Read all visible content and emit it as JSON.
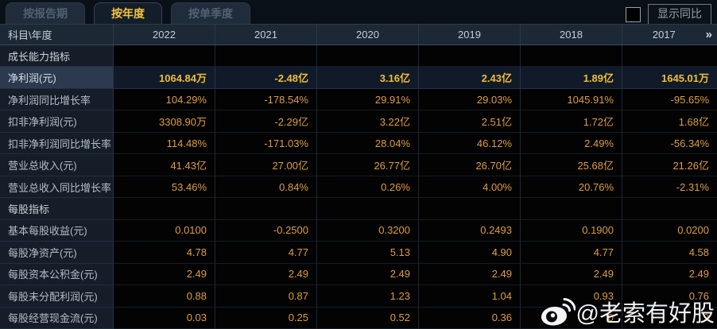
{
  "tabs": [
    {
      "label": "按报告期",
      "active": false
    },
    {
      "label": "按年度",
      "active": true
    },
    {
      "label": "按单季度",
      "active": false
    }
  ],
  "controls": {
    "show_yoy_label": "显示同比",
    "checkbox_checked": false
  },
  "table": {
    "corner_label": "科目\\年度",
    "years": [
      "2022",
      "2021",
      "2020",
      "2019",
      "2018",
      "2017"
    ],
    "more_years_icon": "»",
    "rows": [
      {
        "type": "section",
        "label": "成长能力指标",
        "values": [
          "",
          "",
          "",
          "",
          "",
          ""
        ]
      },
      {
        "type": "data",
        "highlight": true,
        "label": "净利润(元)",
        "values": [
          "1064.84万",
          "-2.48亿",
          "3.16亿",
          "2.43亿",
          "1.89亿",
          "1645.01万"
        ]
      },
      {
        "type": "data",
        "highlight": false,
        "label": "净利润同比增长率",
        "values": [
          "104.29%",
          "-178.54%",
          "29.91%",
          "29.03%",
          "1045.91%",
          "-95.65%"
        ]
      },
      {
        "type": "data",
        "highlight": false,
        "label": "扣非净利润(元)",
        "values": [
          "3308.90万",
          "-2.29亿",
          "3.22亿",
          "2.51亿",
          "1.72亿",
          "1.68亿"
        ]
      },
      {
        "type": "data",
        "highlight": false,
        "label": "扣非净利润同比增长率",
        "values": [
          "114.48%",
          "-171.03%",
          "28.04%",
          "46.12%",
          "2.49%",
          "-56.34%"
        ]
      },
      {
        "type": "data",
        "highlight": false,
        "label": "营业总收入(元)",
        "values": [
          "41.43亿",
          "27.00亿",
          "26.77亿",
          "26.70亿",
          "25.68亿",
          "21.26亿"
        ]
      },
      {
        "type": "data",
        "highlight": false,
        "label": "营业总收入同比增长率",
        "values": [
          "53.46%",
          "0.84%",
          "0.26%",
          "4.00%",
          "20.76%",
          "-2.31%"
        ]
      },
      {
        "type": "section",
        "label": "每股指标",
        "values": [
          "",
          "",
          "",
          "",
          "",
          ""
        ]
      },
      {
        "type": "data",
        "highlight": false,
        "label": "基本每股收益(元)",
        "values": [
          "0.0100",
          "-0.2500",
          "0.3200",
          "0.2493",
          "0.1900",
          "0.0200"
        ]
      },
      {
        "type": "data",
        "highlight": false,
        "label": "每股净资产(元)",
        "values": [
          "4.78",
          "4.77",
          "5.13",
          "4.90",
          "4.77",
          "4.58"
        ]
      },
      {
        "type": "data",
        "highlight": false,
        "label": "每股资本公积金(元)",
        "values": [
          "2.49",
          "2.49",
          "2.49",
          "2.49",
          "2.49",
          "2.49"
        ]
      },
      {
        "type": "data",
        "highlight": false,
        "label": "每股未分配利润(元)",
        "values": [
          "0.88",
          "0.87",
          "1.23",
          "1.04",
          "0.93",
          "0.76"
        ]
      },
      {
        "type": "data",
        "highlight": false,
        "label": "每股经营现金流(元)",
        "values": [
          "0.03",
          "0.25",
          "0.52",
          "0.36",
          "0",
          "9"
        ]
      }
    ]
  },
  "watermark": {
    "text": "@老索有好股",
    "icon": "weibo-icon"
  },
  "colors": {
    "value_orange": "#de9e41",
    "highlight_gold": "#efbe3a",
    "tab_active_text": "#f2c33e",
    "header_bg": "#1d2835",
    "label_bg": "#151d28",
    "highlight_label_bg": "#2c3a50",
    "value_bg": "#030303"
  }
}
